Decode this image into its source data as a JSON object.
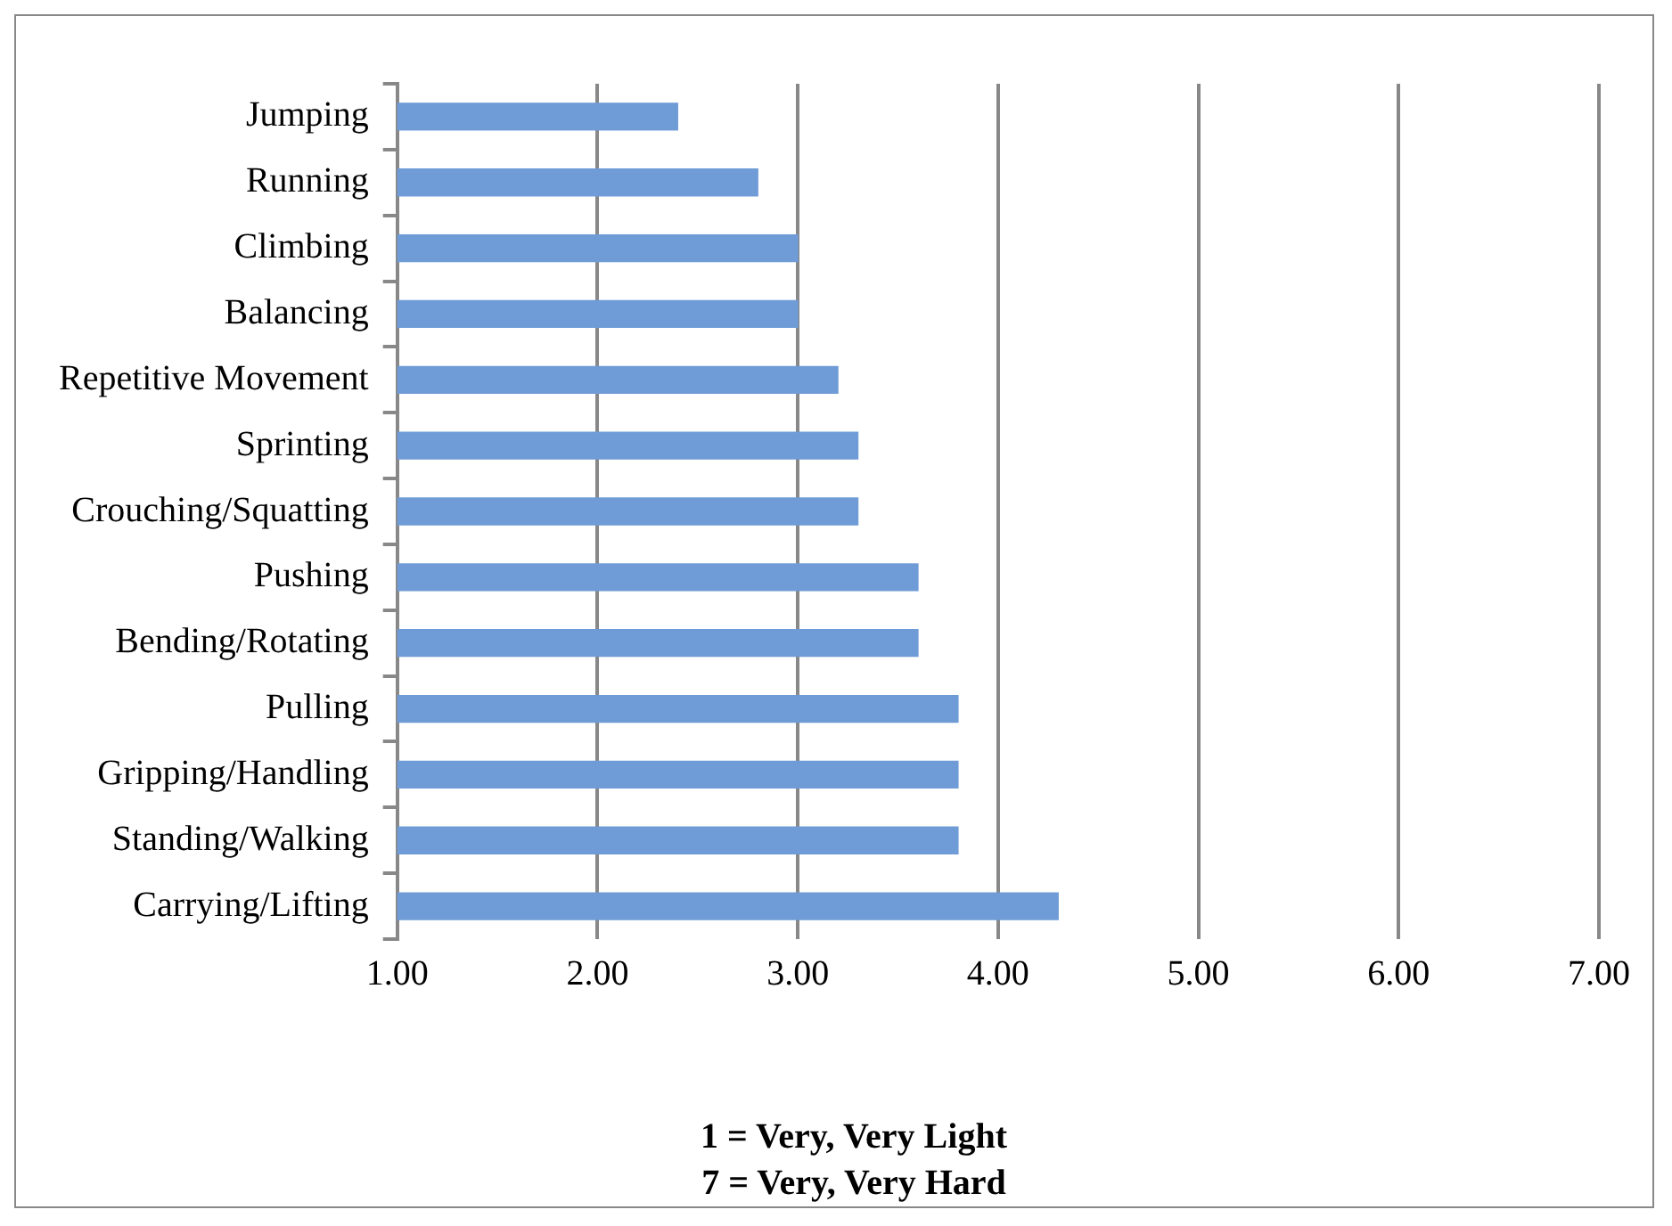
{
  "chart_data": {
    "type": "bar",
    "orientation": "horizontal",
    "categories": [
      "Jumping",
      "Running",
      "Climbing",
      "Balancing",
      "Repetitive Movement",
      "Sprinting",
      "Crouching/Squatting",
      "Pushing",
      "Bending/Rotating",
      "Pulling",
      "Gripping/Handling",
      "Standing/Walking",
      "Carrying/Lifting"
    ],
    "values": [
      2.4,
      2.8,
      3.0,
      3.0,
      3.2,
      3.3,
      3.3,
      3.6,
      3.6,
      3.8,
      3.8,
      3.8,
      4.3
    ],
    "color": "#6f9bd6",
    "xlim": [
      1,
      7
    ],
    "xticks": [
      {
        "value": 1,
        "label": "1.00"
      },
      {
        "value": 2,
        "label": "2.00"
      },
      {
        "value": 3,
        "label": "3.00"
      },
      {
        "value": 4,
        "label": "4.00"
      },
      {
        "value": 5,
        "label": "5.00"
      },
      {
        "value": 6,
        "label": "6.00"
      },
      {
        "value": 7,
        "label": "7.00"
      }
    ],
    "grid": "x",
    "legend": false,
    "annotations": [
      "1 = Very, Very Light",
      "7 = Very, Very Hard"
    ]
  }
}
